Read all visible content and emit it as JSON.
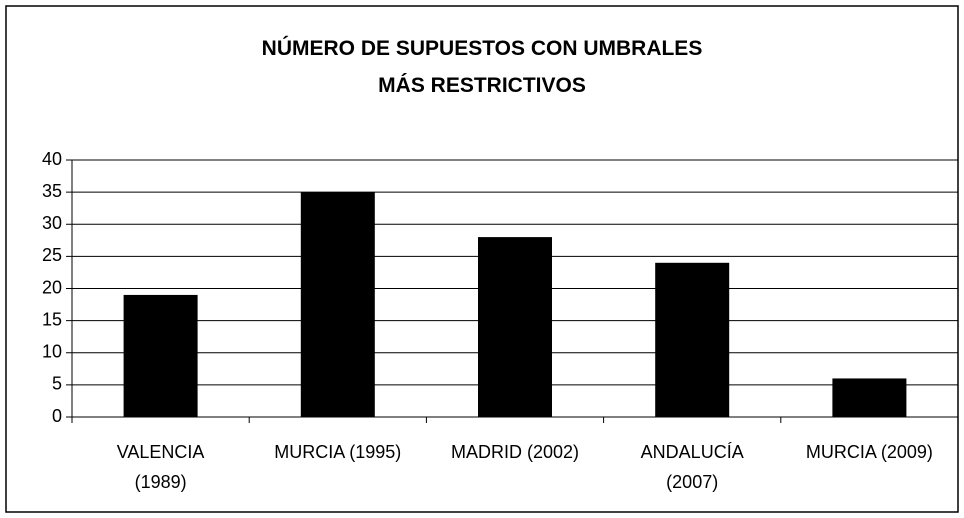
{
  "chart_data": {
    "type": "bar",
    "title": "NÚMERO DE SUPUESTOS CON UMBRALES MÁS RESTRICTIVOS",
    "categories": [
      "VALENCIA (1989)",
      "MURCIA (1995)",
      "MADRID (2002)",
      "ANDALUCÍA (2007)",
      "MURCIA (2009)"
    ],
    "values": [
      19,
      35,
      28,
      24,
      6
    ],
    "color": "#000000",
    "ylim": [
      0,
      40
    ],
    "yticks": [
      0,
      5,
      10,
      15,
      20,
      25,
      30,
      35,
      40
    ],
    "grid": true
  }
}
